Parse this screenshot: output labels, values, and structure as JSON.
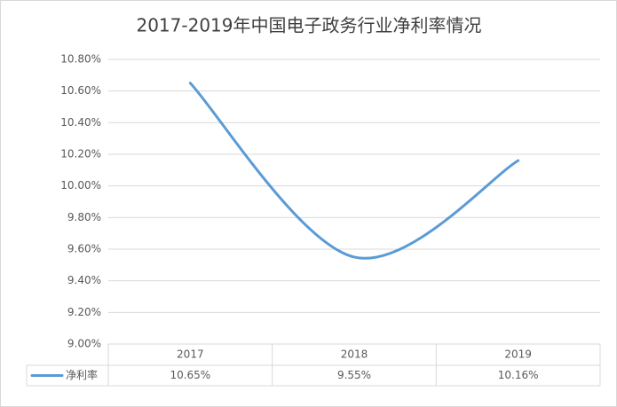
{
  "chart_data": {
    "type": "line",
    "title": "2017-2019年中国电子政务行业净利率情况",
    "categories": [
      "2017",
      "2018",
      "2019"
    ],
    "series": [
      {
        "name": "净利率",
        "color": "#5b9bd5",
        "values": [
          10.65,
          9.55,
          10.16
        ],
        "value_labels": [
          "10.65%",
          "9.55%",
          "10.16%"
        ]
      }
    ],
    "ylim": [
      9.0,
      10.8
    ],
    "yticks": [
      {
        "value": 9.0,
        "label": "9.00%"
      },
      {
        "value": 9.2,
        "label": "9.20%"
      },
      {
        "value": 9.4,
        "label": "9.40%"
      },
      {
        "value": 9.6,
        "label": "9.60%"
      },
      {
        "value": 9.8,
        "label": "9.80%"
      },
      {
        "value": 10.0,
        "label": "10.00%"
      },
      {
        "value": 10.2,
        "label": "10.20%"
      },
      {
        "value": 10.4,
        "label": "10.40%"
      },
      {
        "value": 10.6,
        "label": "10.60%"
      },
      {
        "value": 10.8,
        "label": "10.80%"
      }
    ],
    "grid": true,
    "smooth": true
  }
}
